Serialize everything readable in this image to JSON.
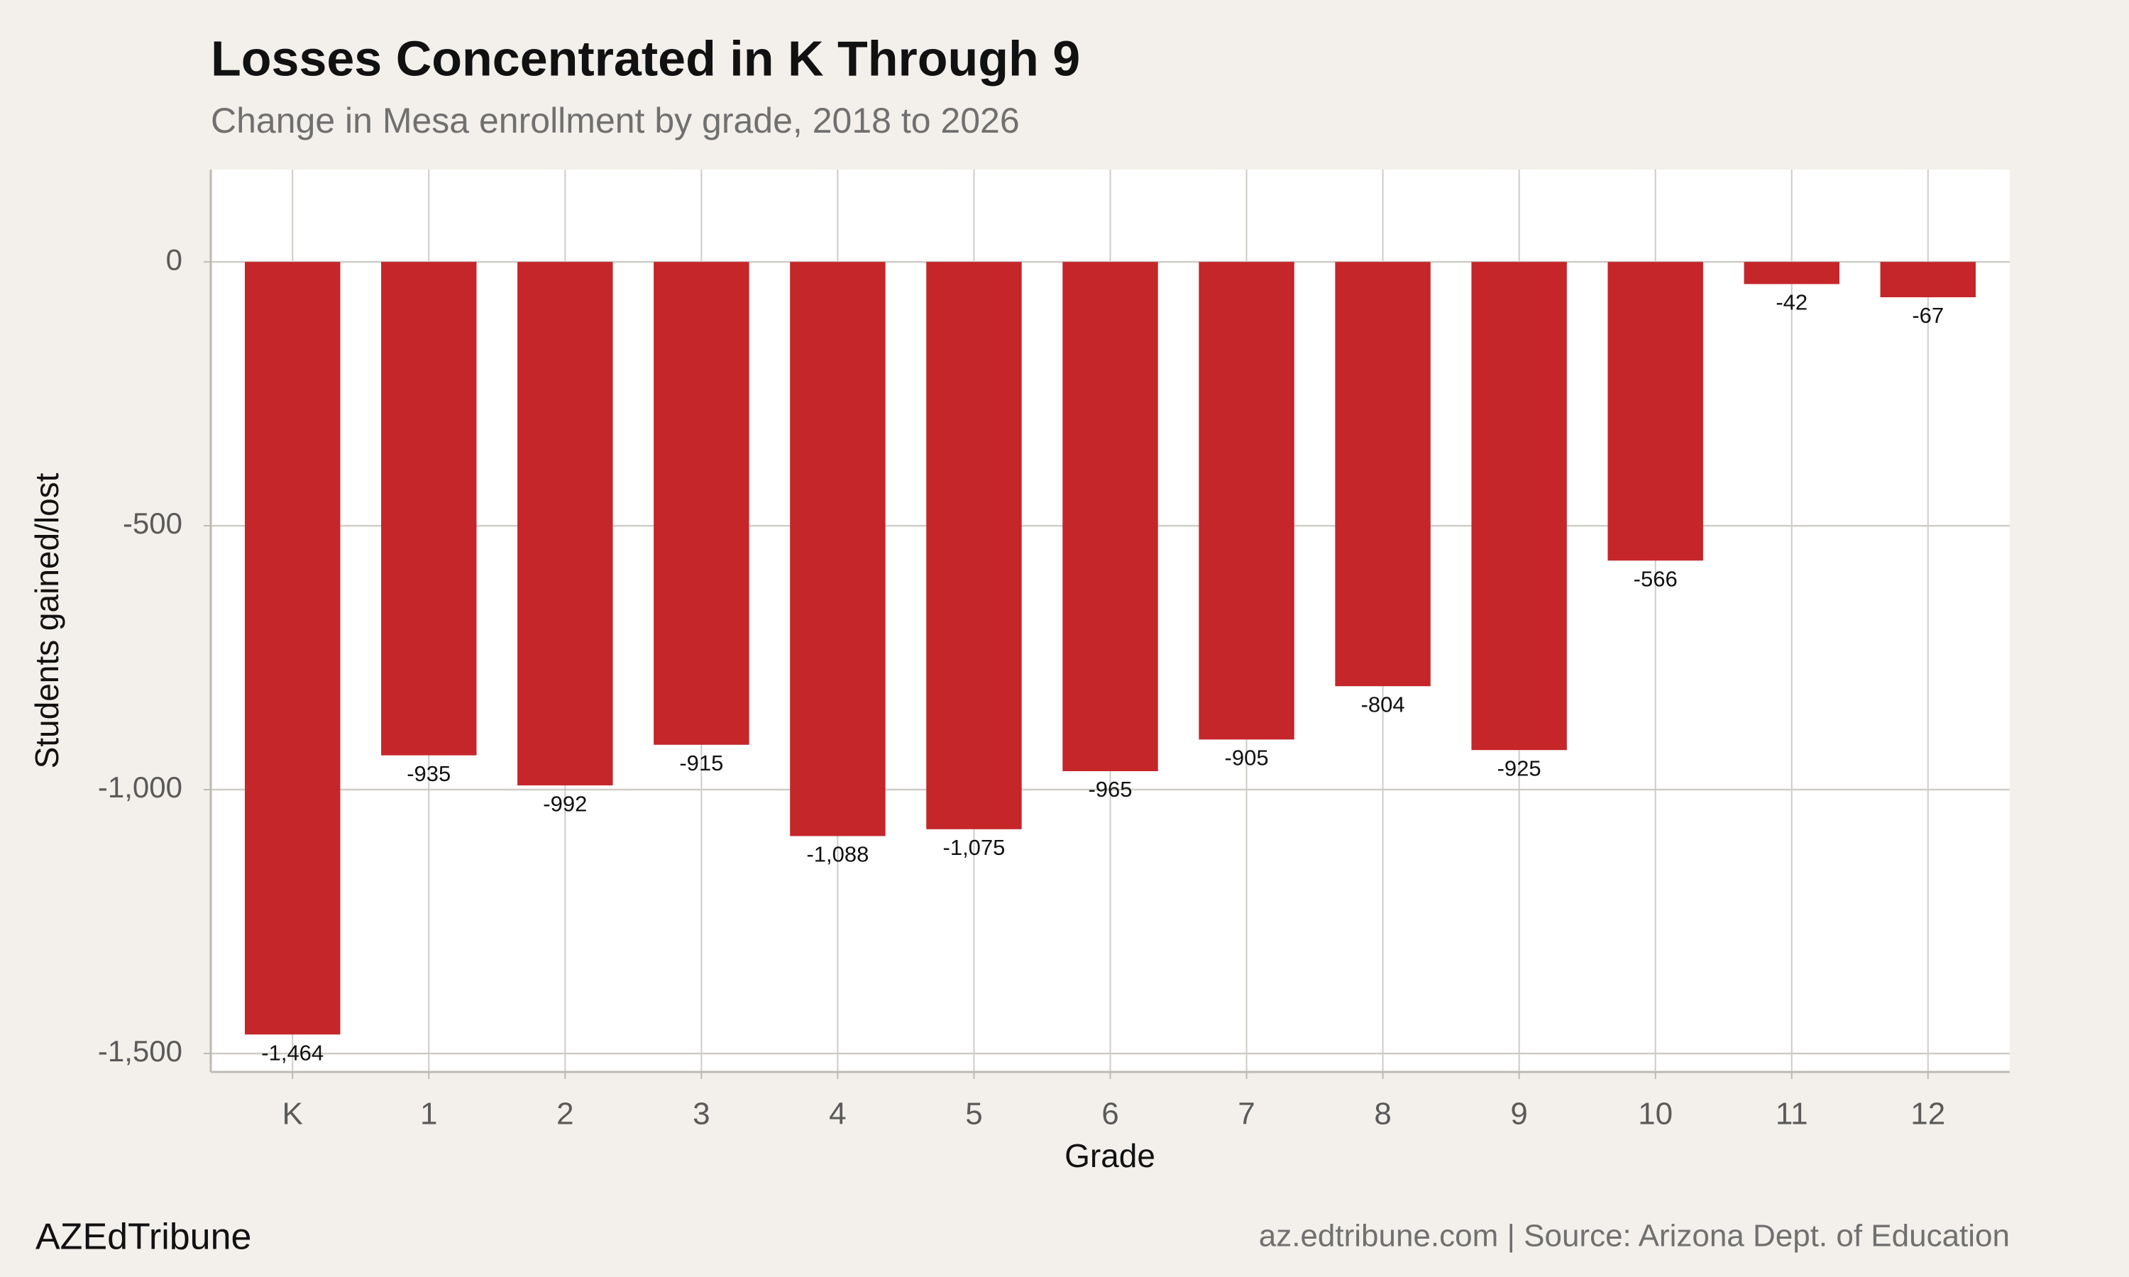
{
  "chart_data": {
    "type": "bar",
    "title": "Losses Concentrated in K Through 9",
    "subtitle": "Change in Mesa enrollment by grade, 2018 to 2026",
    "x_label": "Grade",
    "y_label": "Students gained/lost",
    "caption_left": "AZEdTribune",
    "caption_right": "az.edtribune.com | Source: Arizona Dept. of Education",
    "categories": [
      "K",
      "1",
      "2",
      "3",
      "4",
      "5",
      "6",
      "7",
      "8",
      "9",
      "10",
      "11",
      "12"
    ],
    "values": [
      -1464,
      -935,
      -992,
      -915,
      -1088,
      -1075,
      -965,
      -905,
      -804,
      -925,
      -566,
      -42,
      -67
    ],
    "value_labels": [
      "-1,464",
      "-935",
      "-992",
      "-915",
      "-1,088",
      "-1,075",
      "-965",
      "-905",
      "-804",
      "-925",
      "-566",
      "-42",
      "-67"
    ],
    "color": "#c4262a",
    "ylim": [
      -1535,
      175
    ],
    "yticks": [
      0,
      -500,
      {
        "value": -1000,
        "label": "-1,000"
      },
      {
        "value": -1500,
        "label": "-1,500"
      }
    ],
    "grid": true
  }
}
